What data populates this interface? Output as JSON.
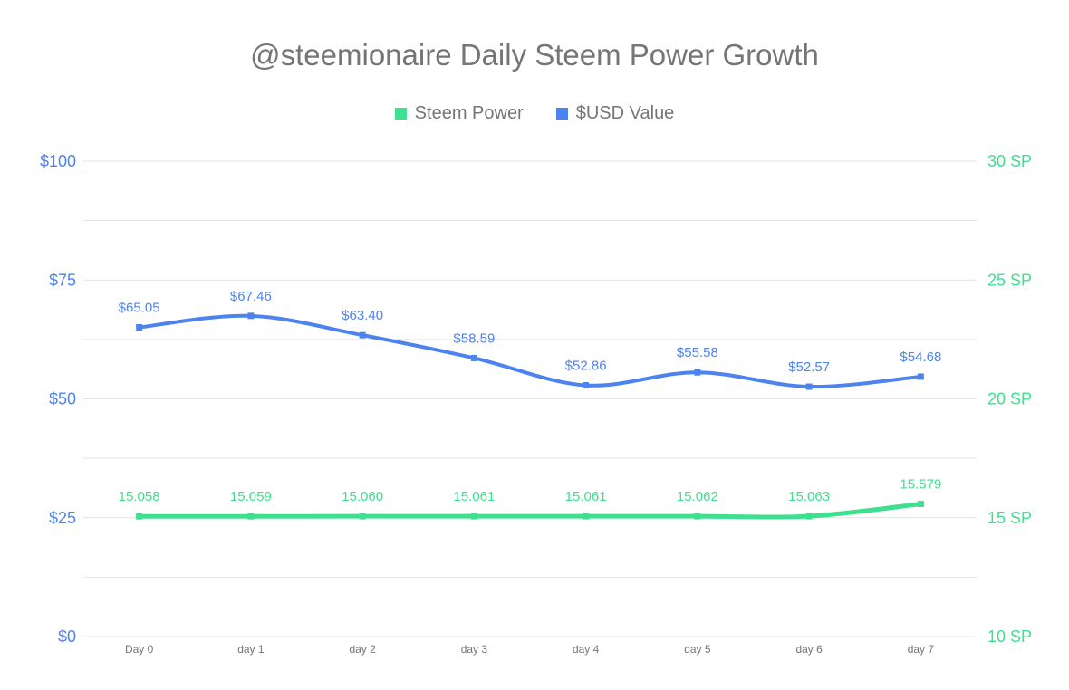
{
  "chart_data": {
    "type": "line",
    "title": "@steemionaire Daily Steem Power Growth",
    "legend_position": "top",
    "smooth": true,
    "point_shape": "square",
    "grid": {
      "horizontal_lines": 9,
      "color": "#e3e3e3",
      "vertical": false
    },
    "categories": [
      "Day 0",
      "day 1",
      "day 2",
      "day 3",
      "day 4",
      "day 5",
      "day 6",
      "day 7"
    ],
    "series": [
      {
        "key": "steem-power",
        "name": "Steem Power",
        "color": "#3ee08f",
        "axis": "right",
        "values": [
          15.058,
          15.059,
          15.06,
          15.061,
          15.061,
          15.062,
          15.063,
          15.579
        ],
        "labels": [
          "15.058",
          "15.059",
          "15.060",
          "15.061",
          "15.061",
          "15.062",
          "15.063",
          "15.579"
        ]
      },
      {
        "key": "usd-value",
        "name": "$USD Value",
        "color": "#4d83ee",
        "axis": "left",
        "values": [
          65.05,
          67.46,
          63.4,
          58.59,
          52.86,
          55.58,
          52.57,
          54.68
        ],
        "labels": [
          "$65.05",
          "$67.46",
          "$63.40",
          "$58.59",
          "$52.86",
          "$55.58",
          "$52.57",
          "$54.68"
        ]
      }
    ],
    "left_axis": {
      "color": "#4d83ee",
      "min": 0,
      "max": 100,
      "ticks": [
        "$0",
        "$25",
        "$50",
        "$75",
        "$100"
      ]
    },
    "right_axis": {
      "color": "#3ee08f",
      "min": 10,
      "max": 30,
      "ticks": [
        "10 SP",
        "15 SP",
        "20 SP",
        "25 SP",
        "30 SP"
      ]
    },
    "x_axis": {
      "color": "#757575"
    }
  }
}
